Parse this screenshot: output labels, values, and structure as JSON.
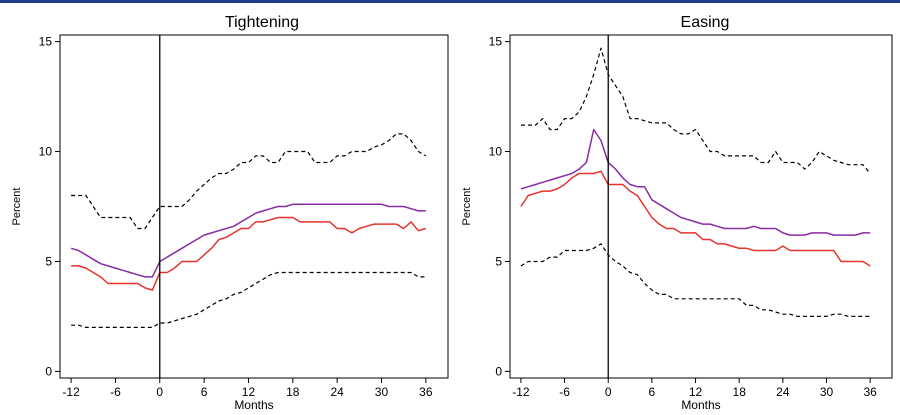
{
  "colors": {
    "header_rule": "#1f3c88",
    "upper_band": "#000000",
    "lower_band": "#000000",
    "purple_line": "#8b2aa6",
    "red_line": "#e8322b",
    "event_line": "#000000"
  },
  "chart_data": [
    {
      "type": "line",
      "title": "Tightening",
      "xlabel": "Months",
      "ylabel": "Percent",
      "xlim": [
        -13.5,
        39
      ],
      "ylim": [
        -0.3,
        15.3
      ],
      "xticks": [
        -12,
        -6,
        0,
        6,
        12,
        18,
        24,
        30,
        36
      ],
      "yticks": [
        0,
        5,
        10,
        15
      ],
      "event_x": 0,
      "grid": false,
      "legend": "none",
      "x": [
        -12,
        -11,
        -10,
        -9,
        -8,
        -7,
        -6,
        -5,
        -4,
        -3,
        -2,
        -1,
        0,
        1,
        2,
        3,
        4,
        5,
        6,
        7,
        8,
        9,
        10,
        11,
        12,
        13,
        14,
        15,
        16,
        17,
        18,
        19,
        20,
        21,
        22,
        23,
        24,
        25,
        26,
        27,
        28,
        29,
        30,
        31,
        32,
        33,
        34,
        35,
        36
      ],
      "series": [
        {
          "style": "dashed",
          "color_key": "upper_band",
          "values": [
            8.0,
            8.0,
            8.0,
            7.5,
            7.0,
            7.0,
            7.0,
            7.0,
            7.0,
            6.5,
            6.5,
            7.0,
            7.5,
            7.5,
            7.5,
            7.5,
            7.8,
            8.2,
            8.5,
            8.8,
            9.0,
            9.0,
            9.2,
            9.5,
            9.5,
            9.8,
            9.8,
            9.5,
            9.5,
            10.0,
            10.0,
            10.0,
            10.0,
            9.5,
            9.5,
            9.5,
            9.8,
            9.8,
            10.0,
            10.0,
            10.0,
            10.2,
            10.3,
            10.5,
            10.8,
            10.8,
            10.5,
            10.0,
            9.8
          ]
        },
        {
          "style": "solid",
          "color_key": "purple_line",
          "values": [
            5.6,
            5.5,
            5.3,
            5.1,
            4.9,
            4.8,
            4.7,
            4.6,
            4.5,
            4.4,
            4.3,
            4.3,
            5.0,
            5.2,
            5.4,
            5.6,
            5.8,
            6.0,
            6.2,
            6.3,
            6.4,
            6.5,
            6.6,
            6.8,
            7.0,
            7.2,
            7.3,
            7.4,
            7.5,
            7.5,
            7.6,
            7.6,
            7.6,
            7.6,
            7.6,
            7.6,
            7.6,
            7.6,
            7.6,
            7.6,
            7.6,
            7.6,
            7.6,
            7.5,
            7.5,
            7.5,
            7.4,
            7.3,
            7.3
          ]
        },
        {
          "style": "solid",
          "color_key": "red_line",
          "values": [
            4.8,
            4.8,
            4.7,
            4.5,
            4.3,
            4.0,
            4.0,
            4.0,
            4.0,
            4.0,
            3.8,
            3.7,
            4.5,
            4.5,
            4.7,
            5.0,
            5.0,
            5.0,
            5.3,
            5.6,
            6.0,
            6.1,
            6.3,
            6.5,
            6.5,
            6.8,
            6.8,
            6.9,
            7.0,
            7.0,
            7.0,
            6.8,
            6.8,
            6.8,
            6.8,
            6.8,
            6.5,
            6.5,
            6.3,
            6.5,
            6.6,
            6.7,
            6.7,
            6.7,
            6.7,
            6.5,
            6.8,
            6.4,
            6.5
          ]
        },
        {
          "style": "dashed",
          "color_key": "lower_band",
          "values": [
            2.1,
            2.1,
            2.0,
            2.0,
            2.0,
            2.0,
            2.0,
            2.0,
            2.0,
            2.0,
            2.0,
            2.0,
            2.2,
            2.2,
            2.3,
            2.4,
            2.5,
            2.6,
            2.8,
            3.0,
            3.2,
            3.3,
            3.5,
            3.6,
            3.8,
            4.0,
            4.2,
            4.4,
            4.5,
            4.5,
            4.5,
            4.5,
            4.5,
            4.5,
            4.5,
            4.5,
            4.5,
            4.5,
            4.5,
            4.5,
            4.5,
            4.5,
            4.5,
            4.5,
            4.5,
            4.5,
            4.5,
            4.3,
            4.3
          ]
        }
      ]
    },
    {
      "type": "line",
      "title": "Easing",
      "xlabel": "Months",
      "ylabel": "Percent",
      "xlim": [
        -13.5,
        39
      ],
      "ylim": [
        -0.3,
        15.3
      ],
      "xticks": [
        -12,
        -6,
        0,
        6,
        12,
        18,
        24,
        30,
        36
      ],
      "yticks": [
        0,
        5,
        10,
        15
      ],
      "event_x": 0,
      "grid": false,
      "legend": "none",
      "x": [
        -12,
        -11,
        -10,
        -9,
        -8,
        -7,
        -6,
        -5,
        -4,
        -3,
        -2,
        -1,
        0,
        1,
        2,
        3,
        4,
        5,
        6,
        7,
        8,
        9,
        10,
        11,
        12,
        13,
        14,
        15,
        16,
        17,
        18,
        19,
        20,
        21,
        22,
        23,
        24,
        25,
        26,
        27,
        28,
        29,
        30,
        31,
        32,
        33,
        34,
        35,
        36
      ],
      "series": [
        {
          "style": "dashed",
          "color_key": "upper_band",
          "values": [
            11.2,
            11.2,
            11.2,
            11.5,
            11.0,
            11.0,
            11.5,
            11.5,
            11.8,
            12.5,
            13.5,
            14.7,
            13.5,
            13.0,
            12.5,
            11.5,
            11.5,
            11.4,
            11.3,
            11.3,
            11.3,
            11.0,
            10.8,
            10.8,
            11.0,
            10.5,
            10.0,
            10.0,
            9.8,
            9.8,
            9.8,
            9.8,
            9.8,
            9.5,
            9.5,
            10.0,
            9.5,
            9.5,
            9.5,
            9.2,
            9.5,
            10.0,
            9.8,
            9.6,
            9.5,
            9.4,
            9.4,
            9.4,
            9.0
          ]
        },
        {
          "style": "solid",
          "color_key": "purple_line",
          "values": [
            8.3,
            8.4,
            8.5,
            8.6,
            8.7,
            8.8,
            8.9,
            9.0,
            9.2,
            9.5,
            11.0,
            10.5,
            9.5,
            9.2,
            8.8,
            8.5,
            8.4,
            8.4,
            7.8,
            7.6,
            7.4,
            7.2,
            7.0,
            6.9,
            6.8,
            6.7,
            6.7,
            6.6,
            6.5,
            6.5,
            6.5,
            6.5,
            6.6,
            6.5,
            6.5,
            6.5,
            6.3,
            6.2,
            6.2,
            6.2,
            6.3,
            6.3,
            6.3,
            6.2,
            6.2,
            6.2,
            6.2,
            6.3,
            6.3
          ]
        },
        {
          "style": "solid",
          "color_key": "red_line",
          "values": [
            7.5,
            8.0,
            8.1,
            8.2,
            8.2,
            8.3,
            8.5,
            8.8,
            9.0,
            9.0,
            9.0,
            9.1,
            8.5,
            8.5,
            8.5,
            8.2,
            8.0,
            7.5,
            7.0,
            6.7,
            6.5,
            6.5,
            6.3,
            6.3,
            6.3,
            6.0,
            6.0,
            5.8,
            5.8,
            5.7,
            5.6,
            5.6,
            5.5,
            5.5,
            5.5,
            5.5,
            5.7,
            5.5,
            5.5,
            5.5,
            5.5,
            5.5,
            5.5,
            5.5,
            5.0,
            5.0,
            5.0,
            5.0,
            4.8
          ]
        },
        {
          "style": "dashed",
          "color_key": "lower_band",
          "values": [
            4.8,
            5.0,
            5.0,
            5.0,
            5.2,
            5.2,
            5.5,
            5.5,
            5.5,
            5.5,
            5.6,
            5.8,
            5.3,
            5.0,
            4.8,
            4.5,
            4.4,
            4.0,
            3.7,
            3.5,
            3.5,
            3.3,
            3.3,
            3.3,
            3.3,
            3.3,
            3.3,
            3.3,
            3.3,
            3.3,
            3.3,
            3.0,
            3.0,
            2.8,
            2.8,
            2.7,
            2.6,
            2.6,
            2.5,
            2.5,
            2.5,
            2.5,
            2.5,
            2.6,
            2.6,
            2.5,
            2.5,
            2.5,
            2.5
          ]
        }
      ]
    }
  ]
}
